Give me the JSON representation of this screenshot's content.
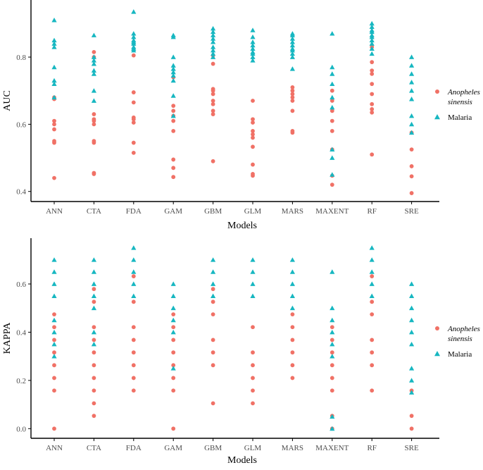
{
  "colors": {
    "anopheles": "#F07166",
    "malaria": "#17B7C1",
    "axis": "#000000",
    "tick_text": "#4d4d4d"
  },
  "chart_data": [
    {
      "id": "auc",
      "type": "scatter",
      "xlabel": "Models",
      "ylabel": "AUC",
      "categories": [
        "ANN",
        "CTA",
        "FDA",
        "GAM",
        "GBM",
        "GLM",
        "MARS",
        "MAXENT",
        "RF",
        "SRE"
      ],
      "ylim": [
        0.37,
        0.97
      ],
      "yticks": [
        0.4,
        0.6,
        0.8
      ],
      "legend": {
        "position": "right",
        "items": [
          "Anopheles sinensis",
          "Malaria"
        ]
      },
      "series": [
        {
          "name": "Anopheles sinensis",
          "marker": "circle",
          "points": [
            [
              0.44,
              0.545,
              0.55,
              0.585,
              0.6,
              0.61,
              0.675,
              0.68
            ],
            [
              0.452,
              0.455,
              0.545,
              0.55,
              0.6,
              0.61,
              0.615,
              0.63,
              0.8,
              0.815
            ],
            [
              0.515,
              0.545,
              0.605,
              0.615,
              0.62,
              0.665,
              0.695,
              0.805
            ],
            [
              0.443,
              0.47,
              0.495,
              0.58,
              0.61,
              0.625,
              0.64,
              0.655,
              0.74
            ],
            [
              0.49,
              0.63,
              0.64,
              0.66,
              0.67,
              0.69,
              0.7,
              0.705,
              0.78,
              0.805
            ],
            [
              0.447,
              0.452,
              0.48,
              0.533,
              0.56,
              0.57,
              0.58,
              0.605,
              0.615,
              0.67
            ],
            [
              0.575,
              0.58,
              0.64,
              0.67,
              0.68,
              0.69,
              0.7,
              0.71
            ],
            [
              0.42,
              0.447,
              0.525,
              0.58,
              0.61,
              0.64,
              0.67,
              0.7
            ],
            [
              0.51,
              0.635,
              0.645,
              0.66,
              0.69,
              0.72,
              0.75,
              0.76,
              0.785,
              0.83
            ],
            [
              0.395,
              0.445,
              0.475,
              0.525,
              0.575
            ]
          ]
        },
        {
          "name": "Malaria",
          "marker": "triangle",
          "points": [
            [
              0.68,
              0.72,
              0.73,
              0.77,
              0.83,
              0.84,
              0.85,
              0.91
            ],
            [
              0.67,
              0.7,
              0.75,
              0.76,
              0.78,
              0.79,
              0.8,
              0.865
            ],
            [
              0.82,
              0.825,
              0.83,
              0.84,
              0.845,
              0.85,
              0.86,
              0.87,
              0.935
            ],
            [
              0.625,
              0.685,
              0.73,
              0.745,
              0.755,
              0.765,
              0.775,
              0.8,
              0.86,
              0.865
            ],
            [
              0.8,
              0.81,
              0.82,
              0.83,
              0.845,
              0.855,
              0.865,
              0.875,
              0.885
            ],
            [
              0.79,
              0.8,
              0.81,
              0.815,
              0.825,
              0.835,
              0.845,
              0.86,
              0.88
            ],
            [
              0.765,
              0.8,
              0.81,
              0.82,
              0.825,
              0.835,
              0.845,
              0.855,
              0.865,
              0.87
            ],
            [
              0.45,
              0.5,
              0.525,
              0.65,
              0.68,
              0.72,
              0.75,
              0.77,
              0.87
            ],
            [
              0.81,
              0.825,
              0.84,
              0.85,
              0.86,
              0.865,
              0.875,
              0.88,
              0.89,
              0.9
            ],
            [
              0.575,
              0.6,
              0.625,
              0.675,
              0.7,
              0.725,
              0.75,
              0.775,
              0.8
            ]
          ]
        }
      ]
    },
    {
      "id": "kappa",
      "type": "scatter",
      "xlabel": "Models",
      "ylabel": "KAPPA",
      "categories": [
        "ANN",
        "CTA",
        "FDA",
        "GAM",
        "GBM",
        "GLM",
        "MARS",
        "MAXENT",
        "RF",
        "SRE"
      ],
      "ylim": [
        -0.04,
        0.79
      ],
      "yticks": [
        0.0,
        0.2,
        0.4,
        0.6
      ],
      "legend": {
        "position": "right",
        "items": [
          "Anopheles sinensis",
          "Malaria"
        ]
      },
      "series": [
        {
          "name": "Anopheles sinensis",
          "marker": "circle",
          "points": [
            [
              0.0,
              0.158,
              0.21,
              0.263,
              0.316,
              0.368,
              0.421,
              0.474
            ],
            [
              0.053,
              0.105,
              0.158,
              0.21,
              0.263,
              0.316,
              0.368,
              0.421,
              0.526,
              0.579
            ],
            [
              0.158,
              0.21,
              0.263,
              0.316,
              0.368,
              0.421,
              0.526,
              0.632
            ],
            [
              0.0,
              0.158,
              0.21,
              0.263,
              0.316,
              0.368,
              0.421,
              0.474
            ],
            [
              0.105,
              0.263,
              0.316,
              0.368,
              0.474,
              0.526,
              0.579
            ],
            [
              0.105,
              0.158,
              0.21,
              0.263,
              0.316,
              0.421
            ],
            [
              0.21,
              0.263,
              0.316,
              0.368,
              0.421,
              0.474
            ],
            [
              0.0,
              0.053,
              0.158,
              0.21,
              0.263,
              0.316,
              0.368,
              0.421
            ],
            [
              0.158,
              0.263,
              0.316,
              0.368,
              0.474,
              0.526,
              0.632
            ],
            [
              0.0,
              0.053,
              0.158
            ]
          ]
        },
        {
          "name": "Malaria",
          "marker": "triangle",
          "points": [
            [
              0.3,
              0.35,
              0.4,
              0.45,
              0.55,
              0.6,
              0.65,
              0.7
            ],
            [
              0.35,
              0.4,
              0.5,
              0.55,
              0.6,
              0.65,
              0.7
            ],
            [
              0.55,
              0.6,
              0.65,
              0.7,
              0.75
            ],
            [
              0.25,
              0.4,
              0.45,
              0.5,
              0.55,
              0.6
            ],
            [
              0.55,
              0.6,
              0.65,
              0.7
            ],
            [
              0.55,
              0.6,
              0.65,
              0.7
            ],
            [
              0.5,
              0.55,
              0.6,
              0.65,
              0.7
            ],
            [
              0.0,
              0.05,
              0.3,
              0.35,
              0.4,
              0.45,
              0.5,
              0.65
            ],
            [
              0.55,
              0.6,
              0.65,
              0.7,
              0.75
            ],
            [
              0.15,
              0.2,
              0.25,
              0.35,
              0.4,
              0.45,
              0.5,
              0.55,
              0.6
            ]
          ]
        }
      ]
    }
  ]
}
